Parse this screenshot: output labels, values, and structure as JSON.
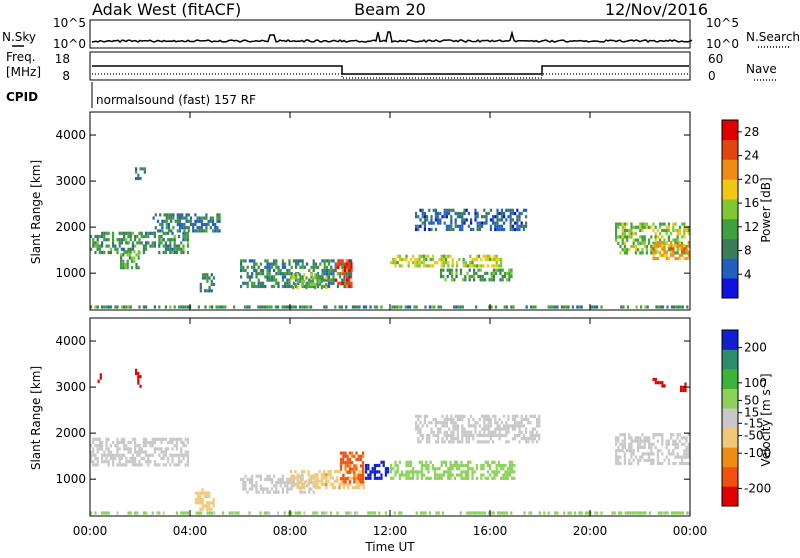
{
  "header": {
    "radar": "Adak West (fitACF)",
    "beam": "Beam 20",
    "date": "12/Nov/2016"
  },
  "params": {
    "nsky_label": "N.Sky",
    "nsearch_label": "N.Search",
    "nsky_ticks": [
      "10^5",
      "10^0"
    ],
    "nsearch_ticks": [
      "10^5",
      "10^0"
    ],
    "freq_label_line1": "Freq.",
    "freq_label_line2": "[MHz]",
    "freq_ticks": [
      "18",
      "8"
    ],
    "nave_label": "Nave",
    "nave_ticks": [
      "60",
      "0"
    ],
    "cpid_label": "CPID",
    "cpid_text": "normalsound (fast) 157 RF"
  },
  "x_ticks": [
    "00:00",
    "04:00",
    "08:00",
    "12:00",
    "16:00",
    "20:00",
    "00:00"
  ],
  "xlabel": "Time UT",
  "chart_data": [
    {
      "type": "heatmap",
      "name": "power",
      "ylabel": "Slant Range [km]",
      "ylim": [
        200,
        4500
      ],
      "xlim_hours": [
        0,
        24
      ],
      "y_ticks": [
        "4000",
        "3000",
        "2000",
        "1000"
      ],
      "colorbar_label": "Power [dB]",
      "colorbar_ticks": [
        "28",
        "24",
        "20",
        "16",
        "12",
        "8",
        "4"
      ],
      "colorbar_range": [
        0,
        30
      ],
      "colors": [
        "#1010e0",
        "#2060c0",
        "#3b7d5a",
        "#40a040",
        "#7ec832",
        "#f0c814",
        "#f08c14",
        "#e04610",
        "#e00000"
      ],
      "features": [
        {
          "t_start": 0.0,
          "t_end": 4.0,
          "r_low": 1400,
          "r_high": 1900,
          "level": 10
        },
        {
          "t_start": 1.2,
          "t_end": 2.0,
          "r_low": 1100,
          "r_high": 1500,
          "level": 12
        },
        {
          "t_start": 1.8,
          "t_end": 2.2,
          "r_low": 3000,
          "r_high": 3300,
          "level": 8
        },
        {
          "t_start": 2.5,
          "t_end": 5.2,
          "r_low": 1900,
          "r_high": 2300,
          "level": 8
        },
        {
          "t_start": 4.3,
          "t_end": 5.0,
          "r_low": 600,
          "r_high": 1000,
          "level": 8
        },
        {
          "t_start": 6.0,
          "t_end": 10.5,
          "r_low": 700,
          "r_high": 1300,
          "level": 9
        },
        {
          "t_start": 8.0,
          "t_end": 9.5,
          "r_low": 650,
          "r_high": 1000,
          "level": 14
        },
        {
          "t_start": 9.8,
          "t_end": 10.5,
          "r_low": 700,
          "r_high": 1300,
          "level": 26
        },
        {
          "t_start": 12.0,
          "t_end": 16.5,
          "r_low": 1100,
          "r_high": 1400,
          "level": 16
        },
        {
          "t_start": 14.0,
          "t_end": 17.0,
          "r_low": 800,
          "r_high": 1100,
          "level": 10
        },
        {
          "t_start": 13.0,
          "t_end": 17.5,
          "r_low": 1900,
          "r_high": 2400,
          "level": 6
        },
        {
          "t_start": 21.0,
          "t_end": 24.0,
          "r_low": 1400,
          "r_high": 2100,
          "level": 14
        },
        {
          "t_start": 22.5,
          "t_end": 24.0,
          "r_low": 1300,
          "r_high": 1700,
          "level": 20
        },
        {
          "t_start": 0.0,
          "t_end": 24.0,
          "r_low": 200,
          "r_high": 300,
          "level": 10
        }
      ]
    },
    {
      "type": "heatmap",
      "name": "velocity",
      "ylabel": "Slant Range [km]",
      "ylim": [
        200,
        4500
      ],
      "xlim_hours": [
        0,
        24
      ],
      "y_ticks": [
        "4000",
        "3000",
        "2000",
        "1000"
      ],
      "colorbar_label": "Velocity [m s⁻¹]",
      "colorbar_ticks": [
        "200",
        "100",
        "50",
        "15",
        "-15",
        "-50",
        "-100",
        "-200"
      ],
      "colorbar_range": [
        -250,
        250
      ],
      "colors": [
        "#e00000",
        "#f05010",
        "#f08c14",
        "#f0c878",
        "#c8c8c8",
        "#8cd25a",
        "#3cb43c",
        "#2c8c6c",
        "#1020d0"
      ],
      "features": [
        {
          "t_start": 0.0,
          "t_end": 4.0,
          "r_low": 1300,
          "r_high": 1900,
          "level": 0
        },
        {
          "t_start": 0.3,
          "t_end": 0.5,
          "r_low": 3100,
          "r_high": 3300,
          "level": -240
        },
        {
          "t_start": 1.8,
          "t_end": 2.1,
          "r_low": 3000,
          "r_high": 3400,
          "level": -240
        },
        {
          "t_start": 4.2,
          "t_end": 5.0,
          "r_low": 300,
          "r_high": 800,
          "level": -60
        },
        {
          "t_start": 6.0,
          "t_end": 9.0,
          "r_low": 700,
          "r_high": 1100,
          "level": 0
        },
        {
          "t_start": 8.0,
          "t_end": 11.0,
          "r_low": 800,
          "r_high": 1200,
          "level": -70
        },
        {
          "t_start": 10.0,
          "t_end": 11.0,
          "r_low": 900,
          "r_high": 1600,
          "level": -150
        },
        {
          "t_start": 11.0,
          "t_end": 12.0,
          "r_low": 1000,
          "r_high": 1400,
          "level": 220
        },
        {
          "t_start": 12.0,
          "t_end": 17.0,
          "r_low": 1000,
          "r_high": 1400,
          "level": 50
        },
        {
          "t_start": 13.0,
          "t_end": 18.0,
          "r_low": 1800,
          "r_high": 2400,
          "level": 0
        },
        {
          "t_start": 21.0,
          "t_end": 24.0,
          "r_low": 1300,
          "r_high": 2000,
          "level": 0
        },
        {
          "t_start": 22.5,
          "t_end": 23.0,
          "r_low": 3000,
          "r_high": 3200,
          "level": -240
        },
        {
          "t_start": 23.6,
          "t_end": 23.9,
          "r_low": 2900,
          "r_high": 3100,
          "level": -240
        },
        {
          "t_start": 0.0,
          "t_end": 24.0,
          "r_low": 200,
          "r_high": 300,
          "level": 40
        }
      ]
    }
  ]
}
